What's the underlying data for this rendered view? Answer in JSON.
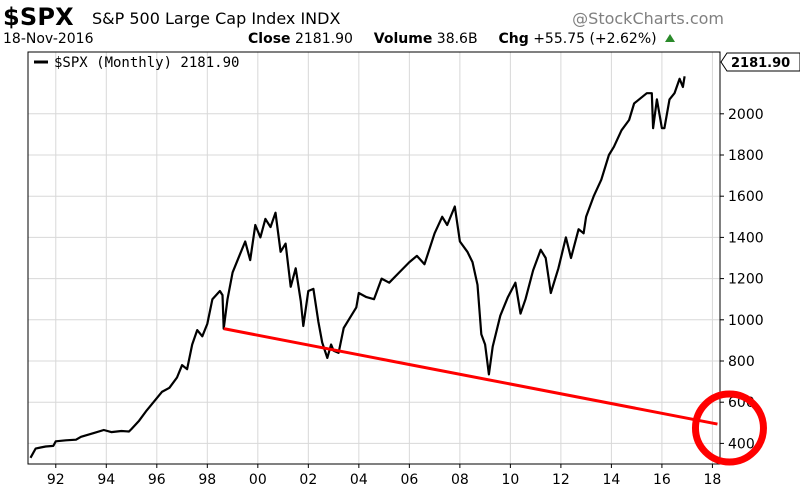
{
  "header": {
    "ticker": "$SPX",
    "name": "S&P 500 Large Cap Index INDX",
    "brand": "@StockCharts.com",
    "date": "18-Nov-2016",
    "close_label": "Close",
    "close_value": "2181.90",
    "volume_label": "Volume",
    "volume_value": "38.6B",
    "chg_label": "Chg",
    "chg_value": "+55.75 (+2.62%)"
  },
  "legend": {
    "label": "$SPX (Monthly) 2181.90"
  },
  "last_price_tag": "2181.90",
  "colors": {
    "price_line": "#000000",
    "trend_line": "#ff0000",
    "circle": "#ff0000",
    "grid": "#d8d8d8",
    "up_arrow": "#2a8a2a"
  },
  "chart_data": {
    "type": "line",
    "x_unit": "year",
    "xlim": [
      1990.9,
      2018.3
    ],
    "ylim": [
      300,
      2300
    ],
    "x_ticks": [
      1992,
      1994,
      1996,
      1998,
      2000,
      2002,
      2004,
      2006,
      2008,
      2010,
      2012,
      2014,
      2016,
      2018
    ],
    "x_tick_labels": [
      "92",
      "94",
      "96",
      "98",
      "00",
      "02",
      "04",
      "06",
      "08",
      "10",
      "12",
      "14",
      "16",
      "18"
    ],
    "y_ticks": [
      400,
      600,
      800,
      1000,
      1200,
      1400,
      1600,
      1800,
      2000
    ],
    "y_tick_labels": [
      "400",
      "600",
      "800",
      "1000",
      "1200",
      "1400",
      "1600",
      "1800",
      "2000"
    ],
    "grid": true,
    "series": [
      {
        "name": "$SPX (Monthly)",
        "points": [
          [
            1991.0,
            330
          ],
          [
            1991.2,
            375
          ],
          [
            1991.4,
            380
          ],
          [
            1991.6,
            385
          ],
          [
            1991.9,
            388
          ],
          [
            1992.0,
            410
          ],
          [
            1992.4,
            415
          ],
          [
            1992.8,
            418
          ],
          [
            1993.0,
            432
          ],
          [
            1993.5,
            450
          ],
          [
            1993.9,
            465
          ],
          [
            1994.2,
            455
          ],
          [
            1994.6,
            460
          ],
          [
            1994.9,
            458
          ],
          [
            1995.0,
            470
          ],
          [
            1995.3,
            510
          ],
          [
            1995.6,
            560
          ],
          [
            1995.9,
            605
          ],
          [
            1996.2,
            650
          ],
          [
            1996.5,
            670
          ],
          [
            1996.8,
            720
          ],
          [
            1997.0,
            780
          ],
          [
            1997.2,
            760
          ],
          [
            1997.4,
            880
          ],
          [
            1997.6,
            950
          ],
          [
            1997.8,
            920
          ],
          [
            1998.0,
            980
          ],
          [
            1998.2,
            1100
          ],
          [
            1998.5,
            1140
          ],
          [
            1998.6,
            1120
          ],
          [
            1998.65,
            957
          ],
          [
            1998.8,
            1100
          ],
          [
            1999.0,
            1230
          ],
          [
            1999.3,
            1320
          ],
          [
            1999.5,
            1380
          ],
          [
            1999.7,
            1290
          ],
          [
            1999.9,
            1460
          ],
          [
            2000.1,
            1400
          ],
          [
            2000.3,
            1490
          ],
          [
            2000.5,
            1450
          ],
          [
            2000.7,
            1520
          ],
          [
            2000.9,
            1330
          ],
          [
            2001.1,
            1370
          ],
          [
            2001.3,
            1160
          ],
          [
            2001.5,
            1250
          ],
          [
            2001.7,
            1090
          ],
          [
            2001.8,
            970
          ],
          [
            2002.0,
            1140
          ],
          [
            2002.2,
            1150
          ],
          [
            2002.4,
            990
          ],
          [
            2002.55,
            890
          ],
          [
            2002.75,
            815
          ],
          [
            2002.9,
            880
          ],
          [
            2003.0,
            850
          ],
          [
            2003.2,
            840
          ],
          [
            2003.4,
            960
          ],
          [
            2003.6,
            1000
          ],
          [
            2003.9,
            1060
          ],
          [
            2004.0,
            1130
          ],
          [
            2004.3,
            1110
          ],
          [
            2004.6,
            1100
          ],
          [
            2004.9,
            1200
          ],
          [
            2005.2,
            1180
          ],
          [
            2005.6,
            1230
          ],
          [
            2006.0,
            1280
          ],
          [
            2006.3,
            1310
          ],
          [
            2006.6,
            1270
          ],
          [
            2007.0,
            1420
          ],
          [
            2007.3,
            1500
          ],
          [
            2007.5,
            1460
          ],
          [
            2007.8,
            1550
          ],
          [
            2008.0,
            1380
          ],
          [
            2008.3,
            1330
          ],
          [
            2008.5,
            1280
          ],
          [
            2008.7,
            1170
          ],
          [
            2008.85,
            930
          ],
          [
            2009.0,
            880
          ],
          [
            2009.15,
            735
          ],
          [
            2009.3,
            870
          ],
          [
            2009.6,
            1020
          ],
          [
            2009.9,
            1110
          ],
          [
            2010.2,
            1180
          ],
          [
            2010.4,
            1030
          ],
          [
            2010.6,
            1100
          ],
          [
            2010.9,
            1240
          ],
          [
            2011.2,
            1340
          ],
          [
            2011.4,
            1300
          ],
          [
            2011.6,
            1130
          ],
          [
            2011.9,
            1250
          ],
          [
            2012.2,
            1400
          ],
          [
            2012.4,
            1300
          ],
          [
            2012.7,
            1440
          ],
          [
            2012.9,
            1420
          ],
          [
            2013.0,
            1500
          ],
          [
            2013.3,
            1600
          ],
          [
            2013.6,
            1680
          ],
          [
            2013.9,
            1800
          ],
          [
            2014.1,
            1840
          ],
          [
            2014.4,
            1920
          ],
          [
            2014.7,
            1970
          ],
          [
            2014.9,
            2050
          ],
          [
            2015.2,
            2080
          ],
          [
            2015.4,
            2100
          ],
          [
            2015.6,
            2100
          ],
          [
            2015.65,
            1930
          ],
          [
            2015.8,
            2070
          ],
          [
            2016.0,
            1930
          ],
          [
            2016.1,
            1930
          ],
          [
            2016.3,
            2070
          ],
          [
            2016.5,
            2100
          ],
          [
            2016.7,
            2170
          ],
          [
            2016.83,
            2130
          ],
          [
            2016.9,
            2181.9
          ]
        ]
      }
    ],
    "trend_line": {
      "from": [
        1998.65,
        957
      ],
      "to": [
        2018.2,
        494
      ]
    },
    "annotation_circle": {
      "center": [
        2018.2,
        494
      ],
      "shape": "circle"
    }
  }
}
